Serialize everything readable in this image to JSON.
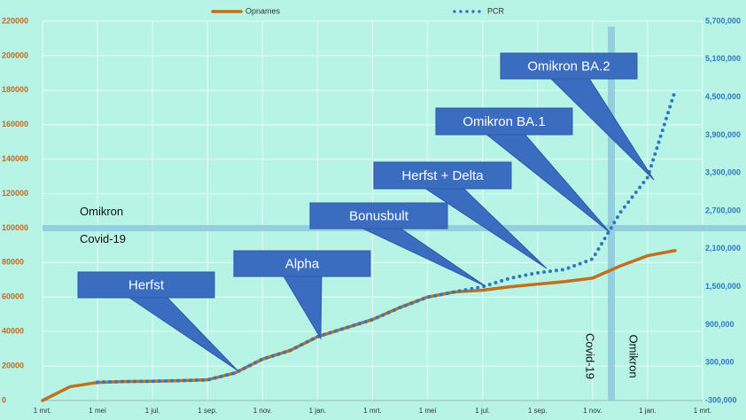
{
  "chart_data": {
    "type": "line",
    "categories": [
      "1 mrt.",
      null,
      "1 mei",
      null,
      "1 jul.",
      null,
      "1 sep.",
      null,
      "1 nov.",
      null,
      "1 jan.",
      null,
      "1 mrt.",
      null,
      "1 mei",
      null,
      "1 jul.",
      null,
      "1 sep.",
      null,
      "1 nov.",
      null,
      "1 jan.",
      null,
      "1 mrt."
    ],
    "series": [
      {
        "name": "Opnames",
        "color": "#c0701e",
        "axis": "y",
        "style": "solid",
        "values": [
          0,
          8000,
          10500,
          11000,
          11200,
          11500,
          12000,
          16000,
          24000,
          29000,
          37000,
          42000,
          47000,
          54000,
          60000,
          63000,
          64000,
          66000,
          67500,
          69000,
          71000,
          78000,
          84000,
          87000,
          null
        ]
      },
      {
        "name": "PCR",
        "color": "#2f78c2",
        "axis": "y2",
        "style": "dotted",
        "values": [
          null,
          null,
          -10000,
          0,
          5000,
          15000,
          27000,
          136000,
          355000,
          490000,
          710000,
          845000,
          980000,
          1170000,
          1335000,
          1420000,
          1500000,
          1635000,
          1720000,
          1775000,
          1940000,
          2670000,
          3230000,
          4600000,
          null
        ]
      }
    ],
    "ylim": [
      0,
      220000
    ],
    "yticks": [
      0,
      20000,
      40000,
      60000,
      80000,
      100000,
      120000,
      140000,
      160000,
      180000,
      200000,
      220000
    ],
    "y2lim": [
      -300000,
      5700000
    ],
    "y2ticks": [
      {
        "value": -300000,
        "label": "-300,000"
      },
      {
        "value": 300000,
        "label": "300,000"
      },
      {
        "value": 900000,
        "label": "900,000"
      },
      {
        "value": 1500000,
        "label": "1,500,000"
      },
      {
        "value": 2100000,
        "label": "2,100,000"
      },
      {
        "value": 2700000,
        "label": "2,700,000"
      },
      {
        "value": 3300000,
        "label": "3,300,000"
      },
      {
        "value": 3900000,
        "label": "3,900,000"
      },
      {
        "value": 4500000,
        "label": "4,500,000"
      },
      {
        "value": 5100000,
        "label": "5,100,000"
      },
      {
        "value": 5700000,
        "label": "5,700,000"
      }
    ],
    "grid": true,
    "legend": "top",
    "annotations": [
      "Herfst",
      "Alpha",
      "Bonusbult",
      "Herfst + Delta",
      "Omikron BA.1",
      "Omikron BA.2"
    ],
    "reference_line": {
      "value": 100000,
      "label_above": "Omikron",
      "label_below": "Covid-19"
    },
    "vertical_line": {
      "labels": [
        "Covid-19",
        "Omikron"
      ]
    }
  }
}
